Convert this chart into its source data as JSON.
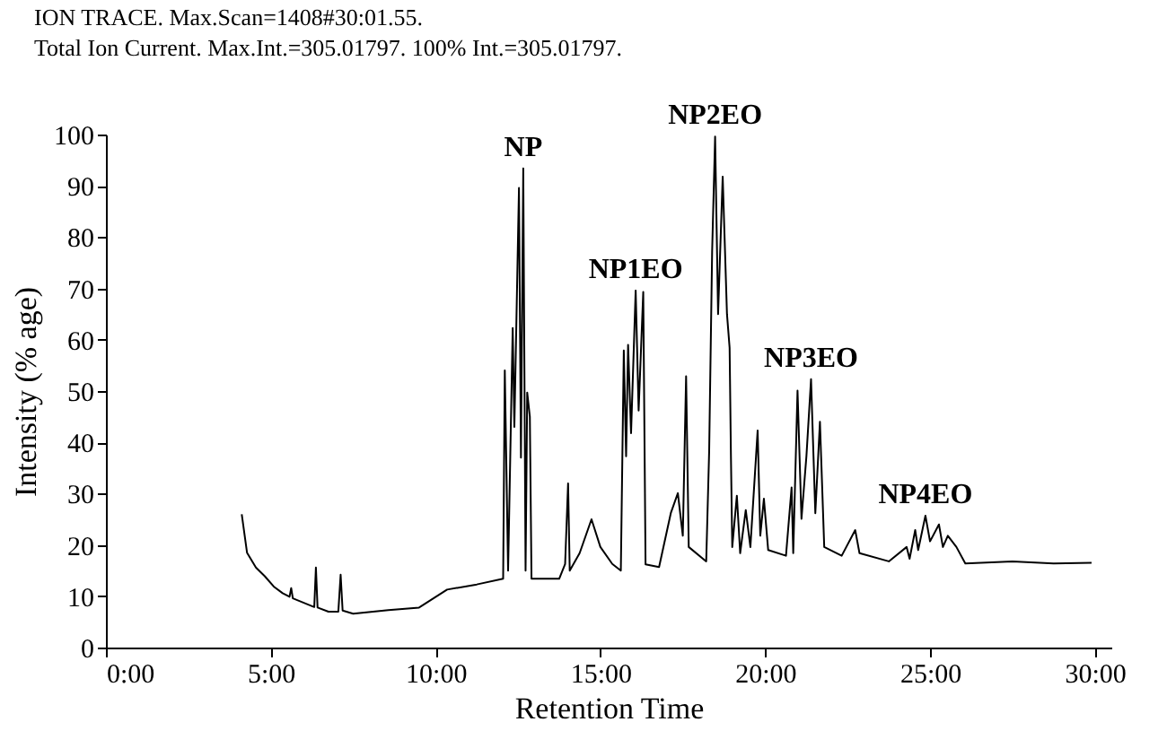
{
  "chart_data": {
    "type": "line",
    "title": "ION TRACE. Max.Scan=1408#30:01.55.",
    "subtitle": "Total Ion Current. Max.Int.=305.01797. 100% Int.=305.01797.",
    "xlabel": "Retention Time",
    "ylabel": "Intensity (% age)",
    "x": [
      4.12,
      4.28,
      4.55,
      4.82,
      5.09,
      5.36,
      5.57,
      5.62,
      5.67,
      6.32,
      6.37,
      6.42,
      6.75,
      7.05,
      7.12,
      7.18,
      7.5,
      8.57,
      9.5,
      10.35,
      11.25,
      12.05,
      12.1,
      12.2,
      12.34,
      12.39,
      12.53,
      12.59,
      12.66,
      12.73,
      12.78,
      12.86,
      12.91,
      13.21,
      13.75,
      13.93,
      14.02,
      14.07,
      14.37,
      14.73,
      15.0,
      15.36,
      15.62,
      15.71,
      15.78,
      15.84,
      15.93,
      16.07,
      16.16,
      16.3,
      16.37,
      16.78,
      17.14,
      17.35,
      17.5,
      17.6,
      17.68,
      18.21,
      18.3,
      18.39,
      18.48,
      18.57,
      18.71,
      18.84,
      18.92,
      18.96,
      19.0,
      19.14,
      19.24,
      19.41,
      19.55,
      19.77,
      19.85,
      19.96,
      20.09,
      20.63,
      20.8,
      20.85,
      20.98,
      21.1,
      21.25,
      21.39,
      21.52,
      21.66,
      21.79,
      22.32,
      22.73,
      22.86,
      23.75,
      24.29,
      24.38,
      24.55,
      24.64,
      24.86,
      25.0,
      25.27,
      25.39,
      25.54,
      25.8,
      26.07,
      27.5,
      28.75,
      29.9
    ],
    "series": [
      {
        "color": "#000000",
        "values": [
          26,
          18.5,
          15.6,
          13.9,
          11.9,
          10.6,
          9.9,
          11.6,
          9.6,
          7.9,
          15.6,
          7.8,
          7.0,
          7.0,
          14.2,
          7.2,
          6.6,
          7.3,
          7.8,
          11.3,
          12.3,
          13.4,
          54,
          15,
          62.3,
          43,
          89.6,
          37,
          93.4,
          15,
          49.7,
          45,
          13.4,
          13.4,
          13.4,
          16.3,
          32,
          15,
          18.4,
          25,
          19.6,
          16.3,
          15,
          57.9,
          37.3,
          59,
          41.8,
          69.6,
          46.2,
          69.3,
          16.2,
          15.7,
          26.3,
          30.1,
          21.8,
          52.9,
          19.6,
          16.8,
          38.4,
          77.3,
          99.6,
          65,
          91.8,
          65,
          58.4,
          37.3,
          19.6,
          29.6,
          18.4,
          26.8,
          19.6,
          42.3,
          21.8,
          29,
          19,
          17.9,
          31.2,
          18.4,
          50.1,
          25.1,
          37.3,
          52.3,
          26.2,
          44,
          19.6,
          17.9,
          22.9,
          18.4,
          16.8,
          19.6,
          17.3,
          22.9,
          19,
          25.7,
          20.7,
          24,
          19.6,
          21.8,
          19.6,
          16.4,
          16.8,
          16.4,
          16.5
        ]
      }
    ],
    "xlim": [
      0,
      30.5
    ],
    "ylim": [
      0,
      100
    ],
    "xticks": [
      {
        "value": 0,
        "label": "0:00"
      },
      {
        "value": 5,
        "label": "5:00"
      },
      {
        "value": 10,
        "label": "10:00"
      },
      {
        "value": 15,
        "label": "15:00"
      },
      {
        "value": 20,
        "label": "20:00"
      },
      {
        "value": 25,
        "label": "25:00"
      },
      {
        "value": 30,
        "label": "30:00"
      }
    ],
    "yticks": [
      0,
      10,
      20,
      30,
      40,
      50,
      60,
      70,
      80,
      90,
      100
    ],
    "annotations": [
      {
        "text": "NP",
        "x": 12.66,
        "y": 93.4
      },
      {
        "text": "NP1EO",
        "x": 16.07,
        "y": 69.6
      },
      {
        "text": "NP2EO",
        "x": 18.48,
        "y": 99.6
      },
      {
        "text": "NP3EO",
        "x": 21.39,
        "y": 52.3
      },
      {
        "text": "NP4EO",
        "x": 24.86,
        "y": 25.7
      }
    ],
    "grid": false,
    "marker": "none",
    "line_style": "solid"
  }
}
